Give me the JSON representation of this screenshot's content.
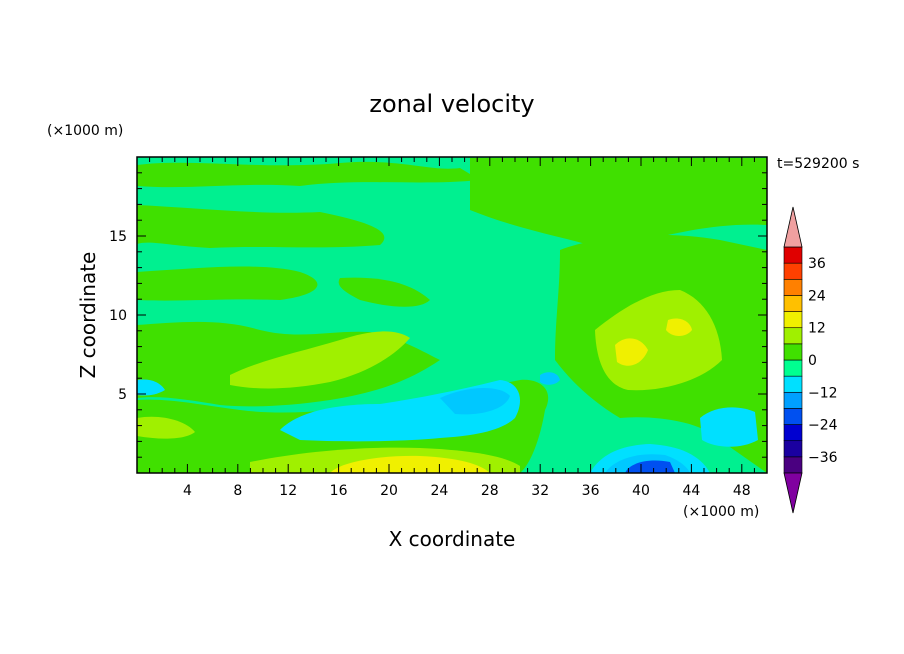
{
  "chart_data": {
    "type": "heatmap",
    "title": "zonal velocity",
    "xlabel": "X coordinate",
    "ylabel": "Z coordinate",
    "x_unit": "(×1000 m)",
    "y_unit": "(×1000 m)",
    "time_label": "t=529200 s",
    "xlim": [
      0,
      50
    ],
    "ylim": [
      0,
      20
    ],
    "x_ticks": [
      4,
      8,
      12,
      16,
      20,
      24,
      28,
      32,
      36,
      40,
      44,
      48
    ],
    "y_ticks": [
      5,
      10,
      15
    ],
    "colorbar": {
      "levels": [
        -42,
        -36,
        -30,
        -24,
        -18,
        -12,
        -6,
        0,
        6,
        12,
        18,
        24,
        30,
        36,
        42
      ],
      "labels": [
        36,
        24,
        12,
        0,
        -12,
        -24,
        -36
      ],
      "colors": [
        "#4a0080",
        "#1a00a0",
        "#0000d0",
        "#0050f0",
        "#00a0ff",
        "#00e0ff",
        "#00ff90",
        "#40e000",
        "#a0f000",
        "#f0f000",
        "#ffc000",
        "#ff8000",
        "#ff4000",
        "#e00000"
      ],
      "over_color": "#f0a0a0",
      "under_color": "#8000a0"
    },
    "field_features": [
      {
        "label": "background",
        "value": 0
      },
      {
        "label": "near-surface jet x=16-32",
        "x": 22,
        "z": 0.4,
        "value": 14
      },
      {
        "label": "left low-level max",
        "x": 2,
        "z": 3,
        "value": 6
      },
      {
        "label": "elevated max",
        "x": 17,
        "z": 6.5,
        "value": 6
      },
      {
        "label": "upper-right max",
        "x": 40,
        "z": 8,
        "value": 9
      },
      {
        "label": "mid negative band",
        "x": 22,
        "z": 3,
        "value": -9
      },
      {
        "label": "negative lobe",
        "x": 27,
        "z": 5,
        "value": -11
      },
      {
        "label": "surface negative core",
        "x": 40,
        "z": 0.5,
        "value": -22
      }
    ]
  }
}
